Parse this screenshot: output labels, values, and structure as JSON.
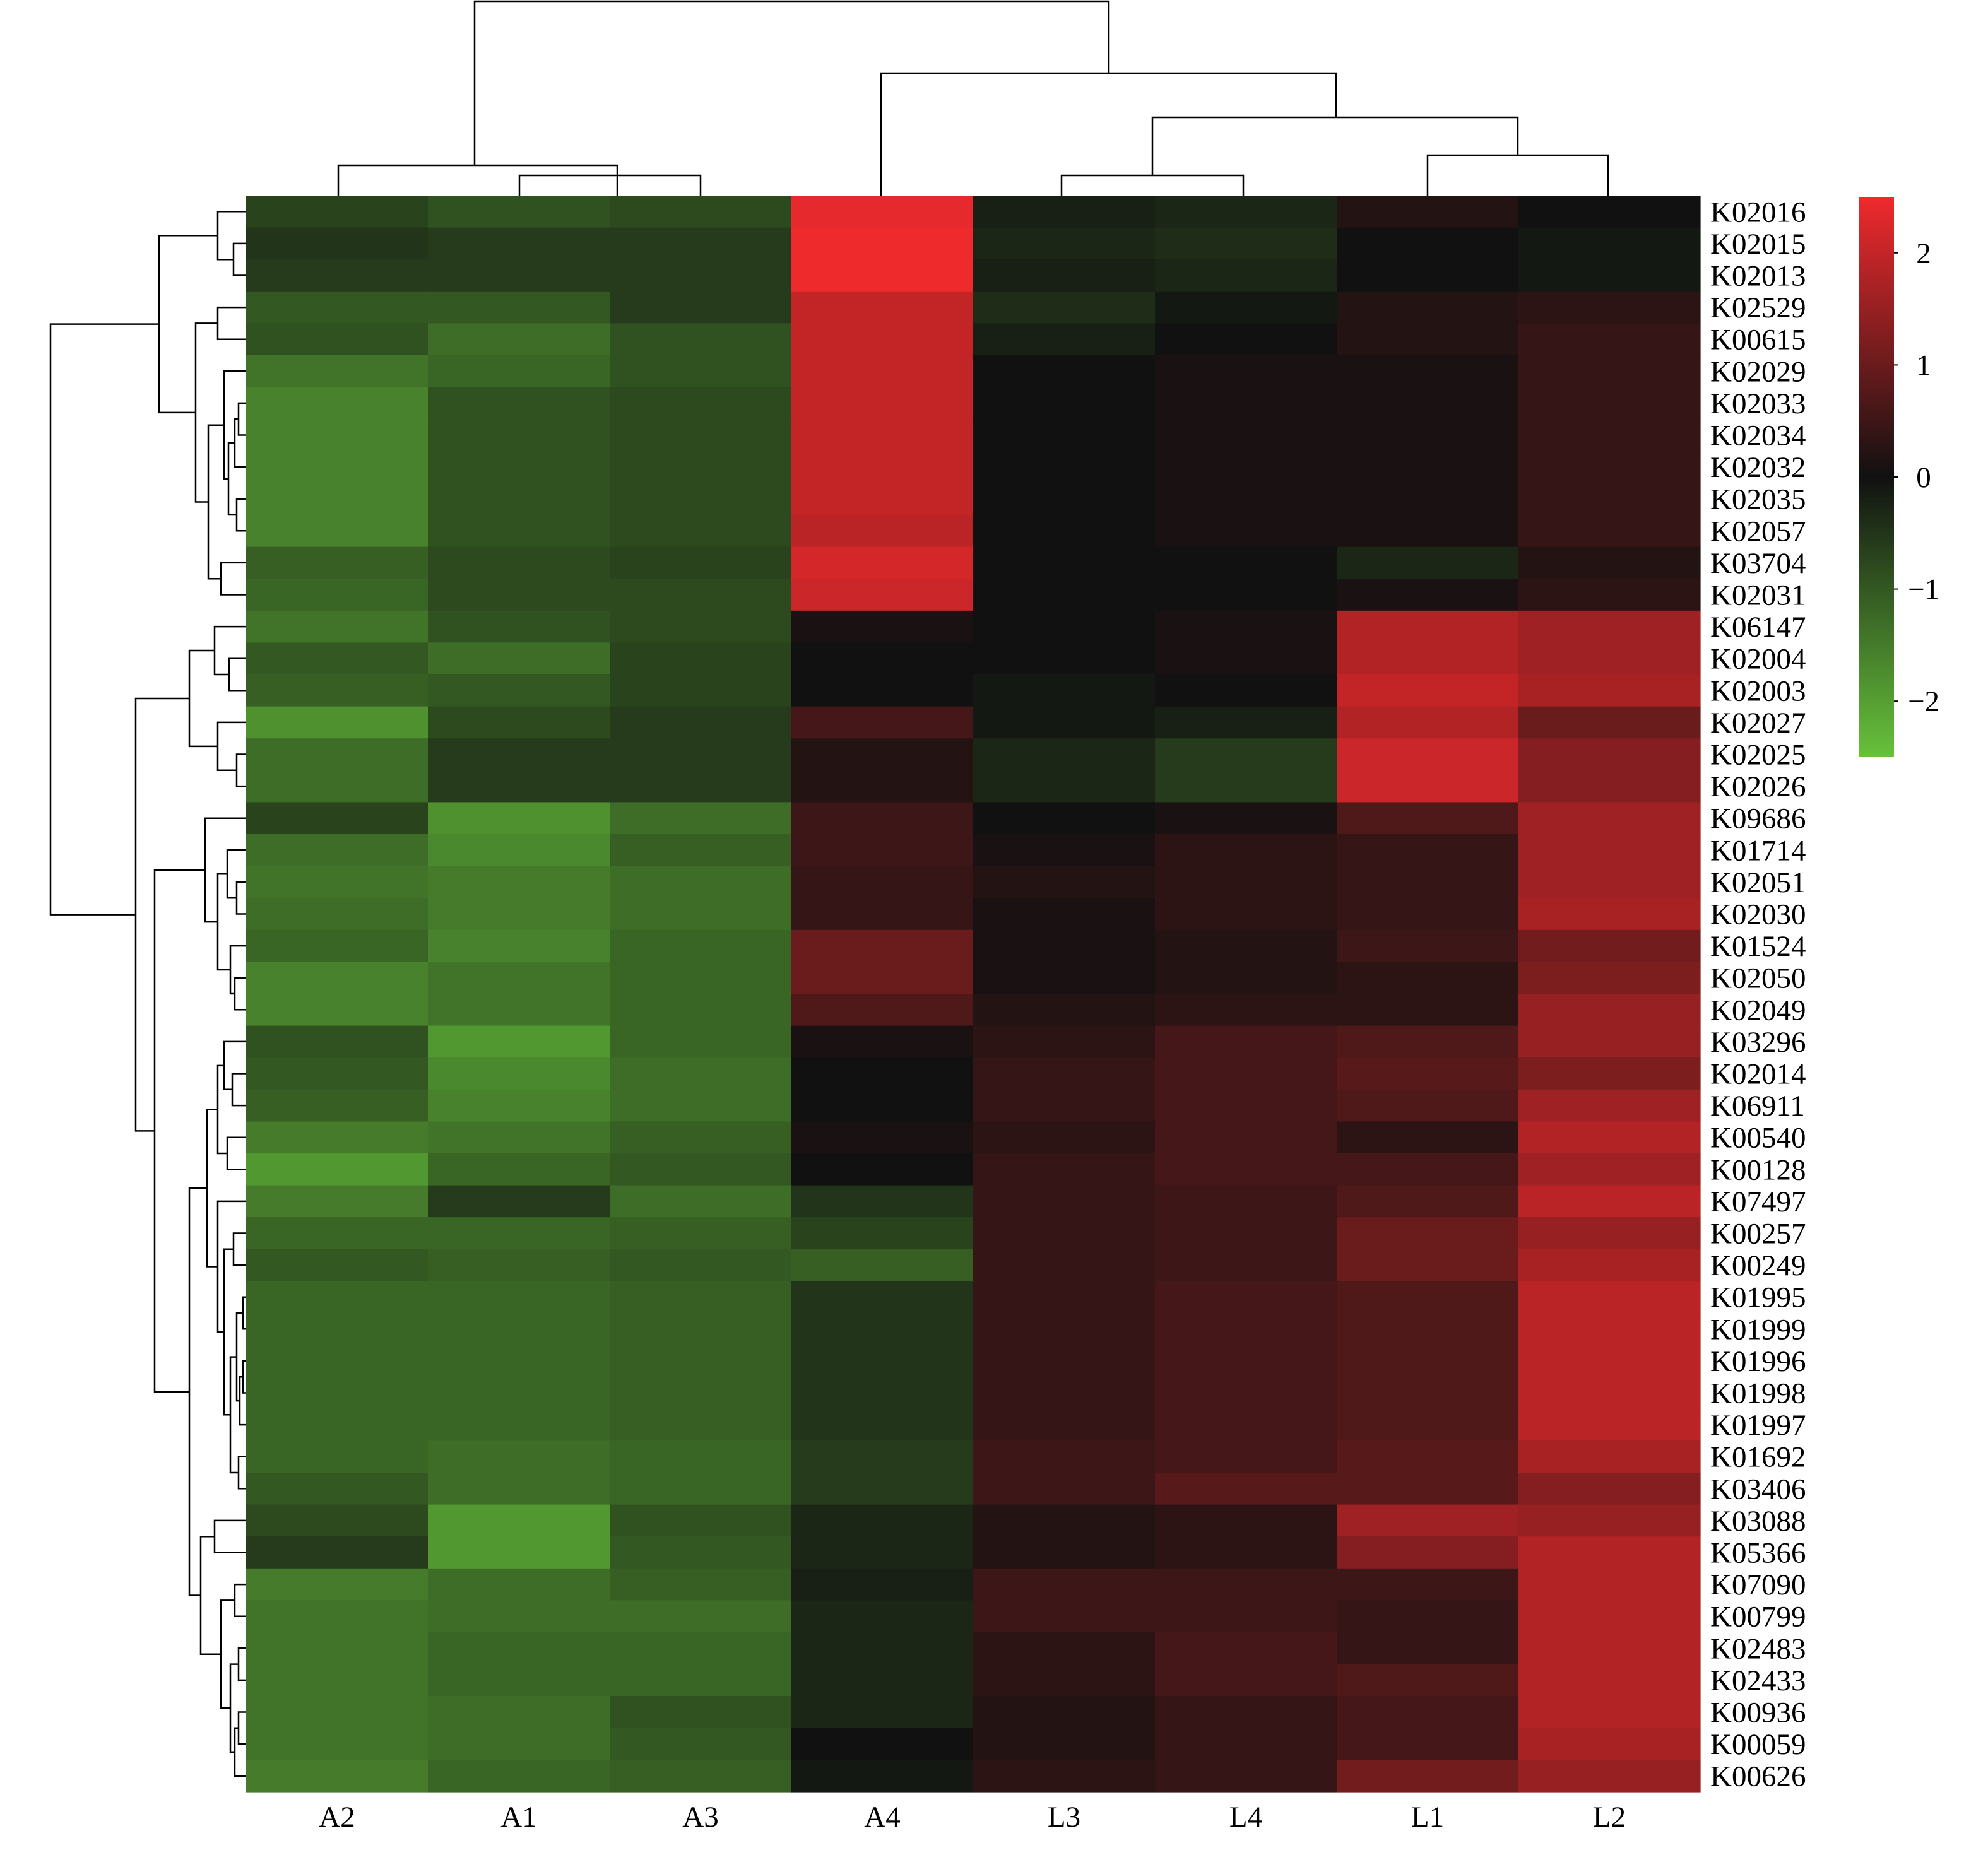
{
  "chart_data": {
    "type": "heatmap",
    "title": "",
    "xlabel": "",
    "ylabel": "",
    "columns": [
      "A2",
      "A1",
      "A3",
      "A4",
      "L3",
      "L4",
      "L1",
      "L2"
    ],
    "rows": [
      "K02016",
      "K02015",
      "K02013",
      "K02529",
      "K00615",
      "K02029",
      "K02033",
      "K02034",
      "K02032",
      "K02035",
      "K02057",
      "K03704",
      "K02031",
      "K06147",
      "K02004",
      "K02003",
      "K02027",
      "K02025",
      "K02026",
      "K09686",
      "K01714",
      "K02051",
      "K02030",
      "K01524",
      "K02050",
      "K02049",
      "K03296",
      "K02014",
      "K06911",
      "K00540",
      "K00128",
      "K07497",
      "K00257",
      "K00249",
      "K01995",
      "K01999",
      "K01996",
      "K01998",
      "K01997",
      "K01692",
      "K03406",
      "K03088",
      "K05366",
      "K07090",
      "K00799",
      "K02483",
      "K02433",
      "K00936",
      "K00059",
      "K00626"
    ],
    "values": [
      [
        -0.7,
        -0.9,
        -0.8,
        2.4,
        -0.2,
        -0.3,
        0.2,
        0.0
      ],
      [
        -0.5,
        -0.6,
        -0.6,
        2.5,
        -0.3,
        -0.4,
        0.0,
        -0.1
      ],
      [
        -0.6,
        -0.6,
        -0.6,
        2.5,
        -0.2,
        -0.3,
        0.0,
        -0.1
      ],
      [
        -1.0,
        -1.0,
        -0.6,
        2.0,
        -0.4,
        -0.1,
        0.2,
        0.3
      ],
      [
        -0.9,
        -1.3,
        -0.9,
        2.0,
        -0.2,
        0.0,
        0.2,
        0.4
      ],
      [
        -1.4,
        -1.2,
        -0.9,
        2.0,
        0.0,
        0.1,
        0.1,
        0.4
      ],
      [
        -1.6,
        -0.9,
        -0.8,
        2.0,
        0.0,
        0.1,
        0.1,
        0.4
      ],
      [
        -1.6,
        -0.9,
        -0.8,
        2.0,
        0.0,
        0.1,
        0.1,
        0.4
      ],
      [
        -1.6,
        -0.9,
        -0.8,
        2.0,
        0.0,
        0.1,
        0.1,
        0.4
      ],
      [
        -1.6,
        -0.9,
        -0.8,
        2.0,
        0.0,
        0.1,
        0.1,
        0.4
      ],
      [
        -1.6,
        -0.9,
        -0.8,
        1.9,
        0.0,
        0.1,
        0.1,
        0.4
      ],
      [
        -1.1,
        -0.8,
        -0.7,
        2.2,
        0.0,
        0.0,
        -0.3,
        0.2
      ],
      [
        -1.2,
        -0.8,
        -0.8,
        2.1,
        0.0,
        0.0,
        0.1,
        0.3
      ],
      [
        -1.4,
        -0.9,
        -0.8,
        0.1,
        0.0,
        0.1,
        1.8,
        1.6
      ],
      [
        -1.0,
        -1.3,
        -0.7,
        0.0,
        0.0,
        0.1,
        1.8,
        1.6
      ],
      [
        -1.1,
        -1.0,
        -0.7,
        0.0,
        -0.1,
        0.0,
        2.0,
        1.7
      ],
      [
        -1.8,
        -0.8,
        -0.6,
        0.6,
        -0.1,
        -0.2,
        1.8,
        1.0
      ],
      [
        -1.3,
        -0.6,
        -0.6,
        0.2,
        -0.3,
        -0.6,
        2.1,
        1.3
      ],
      [
        -1.3,
        -0.6,
        -0.6,
        0.2,
        -0.3,
        -0.6,
        2.1,
        1.3
      ],
      [
        -0.7,
        -1.8,
        -1.3,
        0.5,
        0.0,
        0.1,
        0.7,
        1.6
      ],
      [
        -1.3,
        -1.7,
        -1.1,
        0.5,
        0.1,
        0.3,
        0.4,
        1.6
      ],
      [
        -1.4,
        -1.5,
        -1.3,
        0.4,
        0.2,
        0.3,
        0.4,
        1.6
      ],
      [
        -1.3,
        -1.5,
        -1.3,
        0.4,
        0.1,
        0.3,
        0.4,
        1.7
      ],
      [
        -1.2,
        -1.6,
        -1.2,
        1.0,
        0.1,
        0.2,
        0.5,
        1.1
      ],
      [
        -1.6,
        -1.4,
        -1.2,
        1.0,
        0.1,
        0.2,
        0.3,
        1.2
      ],
      [
        -1.6,
        -1.4,
        -1.2,
        0.7,
        0.2,
        0.3,
        0.3,
        1.5
      ],
      [
        -0.9,
        -1.9,
        -1.2,
        0.1,
        0.3,
        0.6,
        0.7,
        1.5
      ],
      [
        -1.0,
        -1.7,
        -1.3,
        0.0,
        0.4,
        0.6,
        0.8,
        1.2
      ],
      [
        -1.1,
        -1.6,
        -1.3,
        0.0,
        0.4,
        0.6,
        0.7,
        1.6
      ],
      [
        -1.5,
        -1.4,
        -1.1,
        0.1,
        0.3,
        0.6,
        0.3,
        1.8
      ],
      [
        -1.9,
        -1.2,
        -1.0,
        0.0,
        0.4,
        0.6,
        0.6,
        1.6
      ],
      [
        -1.5,
        -0.6,
        -1.3,
        -0.5,
        0.4,
        0.5,
        0.7,
        1.9
      ],
      [
        -1.2,
        -1.2,
        -1.1,
        -0.7,
        0.4,
        0.5,
        1.0,
        1.5
      ],
      [
        -1.0,
        -1.1,
        -1.0,
        -1.1,
        0.4,
        0.5,
        1.0,
        1.7
      ],
      [
        -1.2,
        -1.2,
        -1.1,
        -0.5,
        0.4,
        0.6,
        0.7,
        1.9
      ],
      [
        -1.2,
        -1.2,
        -1.1,
        -0.5,
        0.4,
        0.6,
        0.7,
        1.9
      ],
      [
        -1.2,
        -1.2,
        -1.1,
        -0.5,
        0.4,
        0.6,
        0.7,
        1.9
      ],
      [
        -1.2,
        -1.2,
        -1.1,
        -0.5,
        0.4,
        0.6,
        0.7,
        1.9
      ],
      [
        -1.2,
        -1.2,
        -1.1,
        -0.5,
        0.4,
        0.6,
        0.7,
        1.9
      ],
      [
        -1.2,
        -1.3,
        -1.2,
        -0.6,
        0.5,
        0.6,
        0.8,
        1.7
      ],
      [
        -1.0,
        -1.3,
        -1.2,
        -0.6,
        0.5,
        0.8,
        0.8,
        1.3
      ],
      [
        -0.8,
        -1.9,
        -0.9,
        -0.3,
        0.2,
        0.3,
        1.6,
        1.5
      ],
      [
        -0.6,
        -1.9,
        -1.0,
        -0.3,
        0.2,
        0.3,
        1.3,
        1.8
      ],
      [
        -1.5,
        -1.3,
        -1.1,
        -0.2,
        0.5,
        0.5,
        0.5,
        1.8
      ],
      [
        -1.4,
        -1.3,
        -1.3,
        -0.3,
        0.5,
        0.5,
        0.4,
        1.8
      ],
      [
        -1.4,
        -1.2,
        -1.2,
        -0.3,
        0.3,
        0.6,
        0.4,
        1.8
      ],
      [
        -1.4,
        -1.2,
        -1.2,
        -0.3,
        0.3,
        0.6,
        0.7,
        1.8
      ],
      [
        -1.4,
        -1.3,
        -0.9,
        -0.3,
        0.2,
        0.4,
        0.6,
        1.8
      ],
      [
        -1.4,
        -1.3,
        -1.0,
        0.0,
        0.2,
        0.4,
        0.6,
        1.7
      ],
      [
        -1.5,
        -1.2,
        -1.1,
        -0.1,
        0.3,
        0.4,
        1.1,
        1.5
      ]
    ],
    "colorbar": {
      "min": -2.5,
      "max": 2.5,
      "ticks": [
        2,
        1,
        0,
        -1,
        -2
      ],
      "tick_labels": [
        "2",
        "1",
        "0",
        "−1",
        "−2"
      ],
      "low_color": "#67c23b",
      "mid_color": "#111111",
      "high_color": "#ef2a2d"
    },
    "col_dendrogram": true,
    "row_dendrogram": true,
    "grid": false,
    "legend_position": "right"
  }
}
